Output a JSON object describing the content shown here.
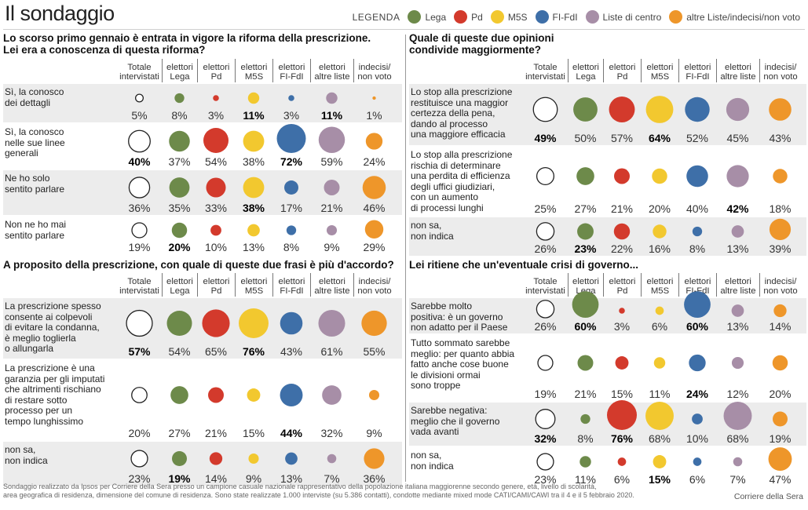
{
  "title": "Il sondaggio",
  "legend": {
    "title": "LEGENDA",
    "items": [
      {
        "label": "Lega",
        "color": "#6d8a4a"
      },
      {
        "label": "Pd",
        "color": "#d33a2c"
      },
      {
        "label": "M5S",
        "color": "#f2c82f"
      },
      {
        "label": "FI-FdI",
        "color": "#3e6fa8"
      },
      {
        "label": "Liste di centro",
        "color": "#a78ea7"
      },
      {
        "label": "altre Liste/indecisi/non voto",
        "color": "#ee962a"
      }
    ]
  },
  "columns": [
    "Totale intervistati",
    "elettori Lega",
    "elettori Pd",
    "elettori M5S",
    "elettori FI-FdI",
    "elettori altre liste",
    "indecisi/ non voto"
  ],
  "column_lines": [
    [
      "Totale",
      "intervistati"
    ],
    [
      "elettori",
      "Lega"
    ],
    [
      "elettori",
      "Pd"
    ],
    [
      "elettori",
      "M5S"
    ],
    [
      "elettori",
      "FI-FdI"
    ],
    [
      "elettori",
      "altre liste"
    ],
    [
      "indecisi/",
      "non voto"
    ]
  ],
  "column_colors": [
    "#ffffff",
    "#6d8a4a",
    "#d33a2c",
    "#f2c82f",
    "#3e6fa8",
    "#a78ea7",
    "#ee962a"
  ],
  "chart_data": [
    {
      "type": "table",
      "title": "Lo scorso primo gennaio è entrata in vigore la riforma della prescrizione. Lei era a conoscenza di questa riforma?",
      "title_lines": [
        "Lo scorso primo gennaio è entrata in vigore la riforma della prescrizione.",
        "Lei era a conoscenza di questa riforma?"
      ],
      "rows": [
        {
          "label_lines": [
            "Sì, la conosco",
            "dei dettagli"
          ],
          "values": [
            5,
            8,
            3,
            11,
            3,
            11,
            1
          ],
          "bold": [
            3,
            5
          ]
        },
        {
          "label_lines": [
            "Sì, la conosco",
            "nelle sue linee",
            "generali"
          ],
          "values": [
            40,
            37,
            54,
            38,
            72,
            59,
            24
          ],
          "bold": [
            0,
            4
          ]
        },
        {
          "label_lines": [
            "Ne ho solo",
            "sentito parlare"
          ],
          "values": [
            36,
            35,
            33,
            38,
            17,
            21,
            46
          ],
          "bold": [
            3
          ]
        },
        {
          "label_lines": [
            "Non ne ho mai",
            "sentito parlare"
          ],
          "values": [
            19,
            20,
            10,
            13,
            8,
            9,
            29
          ],
          "bold": [
            1
          ]
        }
      ]
    },
    {
      "type": "table",
      "title": "Quale di queste due opinioni condivide maggiormente?",
      "title_lines": [
        "Quale di queste due opinioni",
        "condivide maggiormente?"
      ],
      "rows": [
        {
          "label_lines": [
            "Lo stop alla prescrizione",
            "restituisce una maggior",
            "certezza della pena,",
            "dando al processo",
            "una maggiore efficacia"
          ],
          "values": [
            49,
            50,
            57,
            64,
            52,
            45,
            43
          ],
          "bold": [
            0,
            3
          ]
        },
        {
          "label_lines": [
            "Lo stop alla prescrizione",
            "rischia di determinare",
            "una perdita di efficienza",
            "degli uffici giudiziari,",
            "con un aumento",
            "di processi lunghi"
          ],
          "values": [
            25,
            27,
            21,
            20,
            40,
            42,
            18
          ],
          "bold": [
            5
          ]
        },
        {
          "label_lines": [
            "non sa,",
            "non indica"
          ],
          "values": [
            26,
            23,
            22,
            16,
            8,
            13,
            39
          ],
          "bold": [
            1
          ]
        }
      ]
    },
    {
      "type": "table",
      "title": "A proposito della prescrizione, con quale di queste due frasi è più d'accordo?",
      "title_lines": [
        "A proposito della prescrizione, con quale di queste due frasi è più d'accordo?"
      ],
      "rows": [
        {
          "label_lines": [
            "La prescrizione spesso",
            "consente ai colpevoli",
            "di evitare la condanna,",
            "è meglio toglierla",
            "o allungarla"
          ],
          "values": [
            57,
            54,
            65,
            76,
            43,
            61,
            55
          ],
          "bold": [
            0,
            3
          ]
        },
        {
          "label_lines": [
            "La prescrizione è una",
            "garanzia per gli imputati",
            "che altrimenti rischiano",
            "di restare sotto",
            "processo per un",
            "tempo lunghissimo"
          ],
          "values": [
            20,
            27,
            21,
            15,
            44,
            32,
            9
          ],
          "bold": [
            4
          ]
        },
        {
          "label_lines": [
            "non sa,",
            "non indica"
          ],
          "values": [
            23,
            19,
            14,
            9,
            13,
            7,
            36
          ],
          "bold": [
            1
          ]
        }
      ]
    },
    {
      "type": "table",
      "title": "Lei ritiene che un'eventuale crisi di governo...",
      "title_lines": [
        "Lei ritiene che un'eventuale crisi di governo..."
      ],
      "rows": [
        {
          "label_lines": [
            "Sarebbe molto",
            "positiva: è un governo",
            "non adatto per il Paese"
          ],
          "values": [
            26,
            60,
            3,
            6,
            60,
            13,
            14
          ],
          "bold": [
            1,
            4
          ]
        },
        {
          "label_lines": [
            "Tutto sommato sarebbe",
            "meglio: per quanto abbia",
            "fatto anche cose buone",
            "le divisioni ormai",
            "sono troppe"
          ],
          "values": [
            19,
            21,
            15,
            11,
            24,
            12,
            20
          ],
          "bold": [
            4
          ]
        },
        {
          "label_lines": [
            "Sarebbe negativa:",
            "meglio che il governo",
            "vada avanti"
          ],
          "values": [
            32,
            8,
            76,
            68,
            10,
            68,
            19
          ],
          "bold": [
            0,
            2
          ]
        },
        {
          "label_lines": [
            "non sa,",
            "non indica"
          ],
          "values": [
            23,
            11,
            6,
            15,
            6,
            7,
            47
          ],
          "bold": [
            3
          ]
        }
      ]
    }
  ],
  "footer": {
    "line1": "Sondaggio realizzato da Ipsos per Corriere della Sera presso un campione casuale nazionale rappresentativo della popolazione italiana maggiorenne secondo genere, età, livello di scolarità,",
    "line2": "area geografica di residenza, dimensione del comune di residenza. Sono state realizzate 1.000 interviste (su 5.386 contatti), condotte mediante mixed mode CATI/CAMI/CAWI tra il 4 e il 5 febbraio 2020.",
    "source": "Corriere della Sera"
  }
}
